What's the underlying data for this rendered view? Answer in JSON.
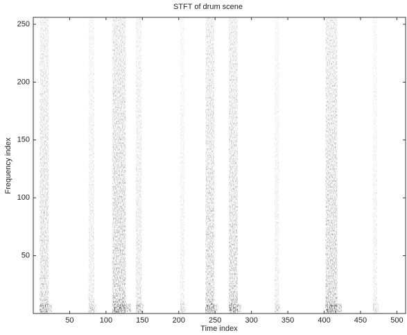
{
  "chart_data": {
    "type": "heatmap",
    "title": "STFT of drum scene",
    "xlabel": "Time index",
    "ylabel": "Frequency index",
    "x": [
      15,
      80,
      118,
      145,
      205,
      243,
      275,
      335,
      410,
      470
    ],
    "durations": [
      12,
      8,
      18,
      8,
      6,
      12,
      12,
      6,
      16,
      6
    ],
    "values": [
      0.7,
      0.4,
      0.9,
      0.5,
      0.3,
      0.8,
      0.8,
      0.35,
      0.85,
      0.3
    ],
    "color": "#222222",
    "xlim": [
      0,
      512
    ],
    "ylim": [
      0,
      256
    ],
    "xticks": [
      50,
      100,
      150,
      200,
      250,
      300,
      350,
      400,
      450,
      500
    ],
    "yticks": [
      50,
      100,
      150,
      200,
      250
    ]
  }
}
